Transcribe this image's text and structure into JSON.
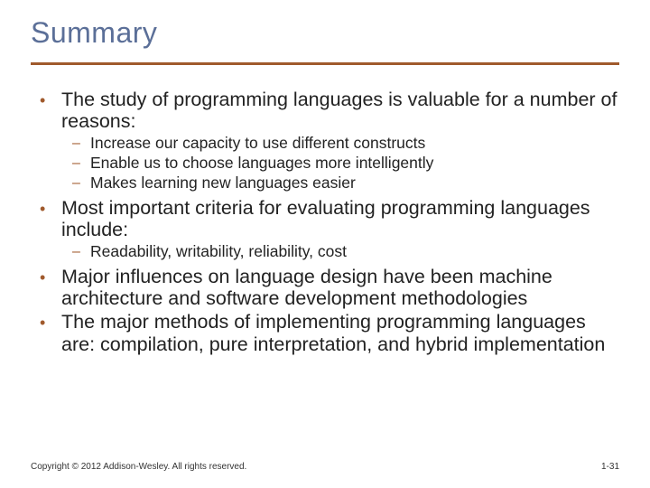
{
  "colors": {
    "title": "#5b6f98",
    "rule": "#a05a2c",
    "bullet": "#a05a2c",
    "text": "#222222",
    "background": "#ffffff"
  },
  "title": "Summary",
  "bullets": [
    {
      "text": "The study of programming languages is valuable for a number of reasons:",
      "sub": [
        "Increase our capacity to use different constructs",
        "Enable us to choose languages more intelligently",
        "Makes learning new languages easier"
      ]
    },
    {
      "text": "Most important criteria for evaluating programming languages include:",
      "sub": [
        "Readability, writability, reliability, cost"
      ]
    },
    {
      "text": "Major influences on language design have been machine architecture and software development methodologies",
      "sub": []
    },
    {
      "text": "The major methods of implementing programming languages are: compilation, pure interpretation, and hybrid implementation",
      "sub": []
    }
  ],
  "footer": {
    "copyright": "Copyright © 2012 Addison-Wesley. All rights reserved.",
    "page": "1-31"
  }
}
